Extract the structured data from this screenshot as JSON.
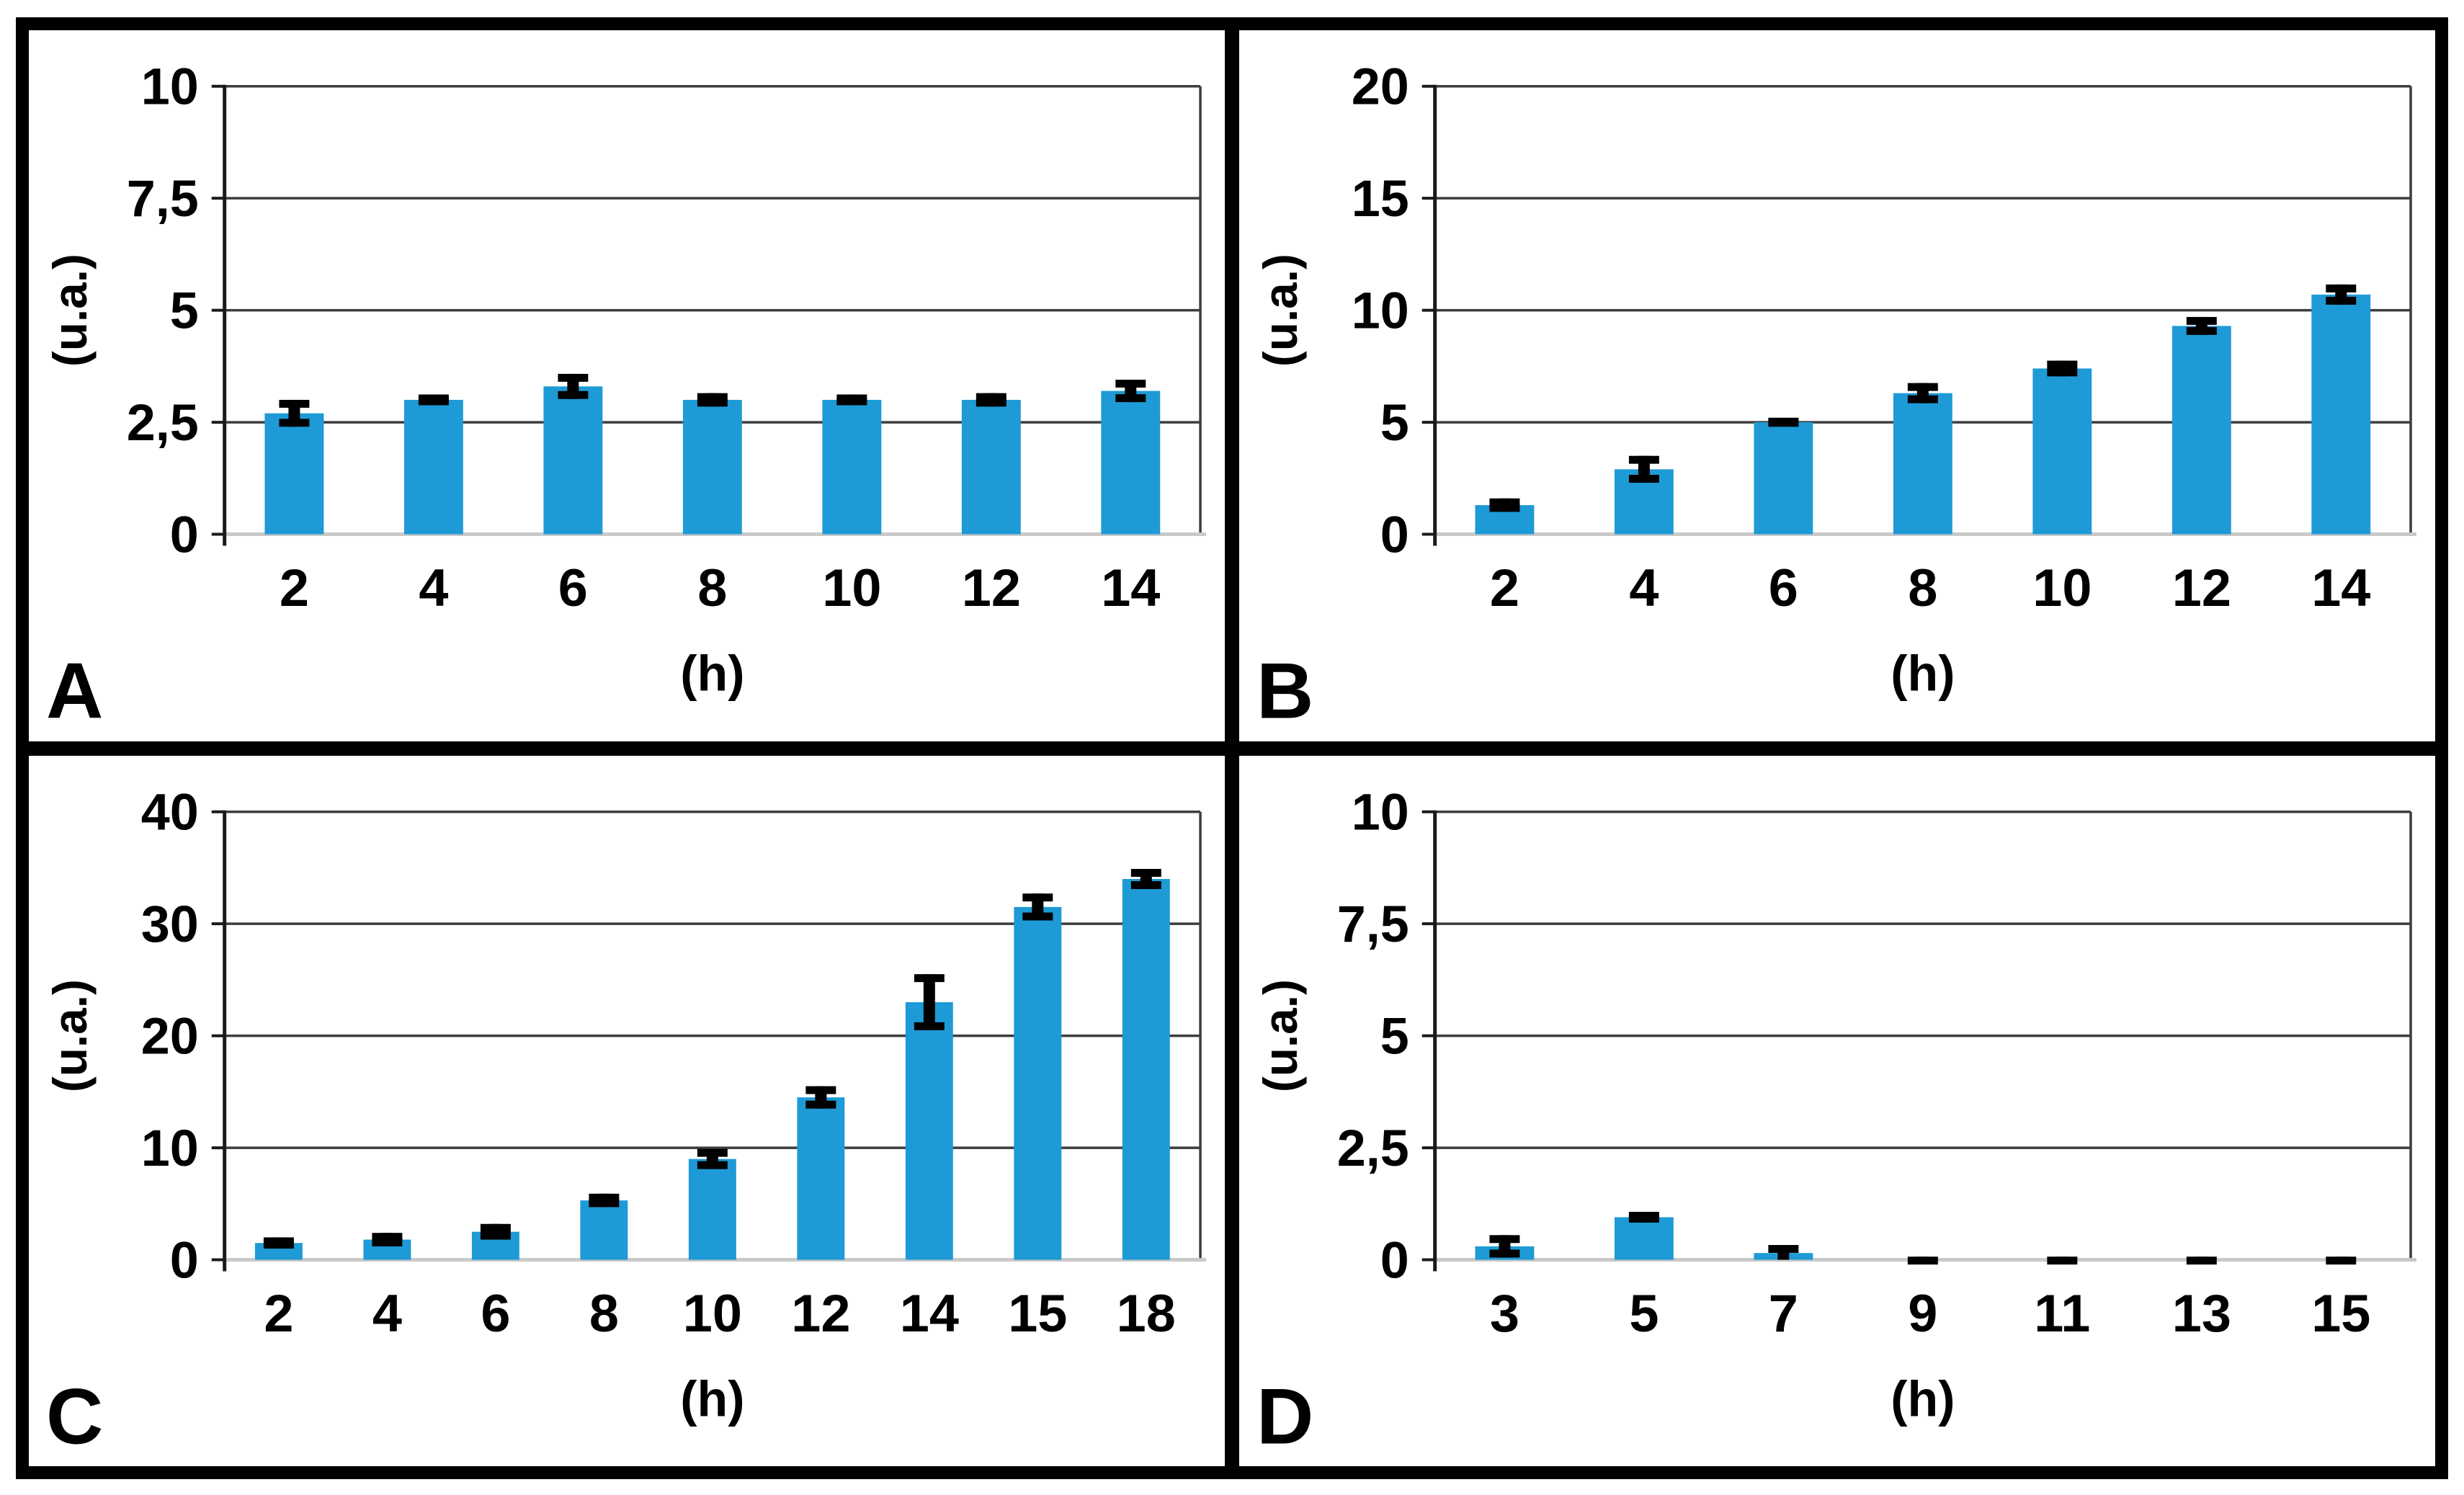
{
  "figure": {
    "background": "#ffffff",
    "frame_color": "#000000",
    "bar_color": "#1e9ad6",
    "gridline_color": "#3d3d3d",
    "axis_color": "#1a1a1a",
    "baseline_color": "#c9c9c9",
    "error_color": "#000000",
    "panel_letters": [
      "A",
      "B",
      "C",
      "D"
    ]
  },
  "chart_data": [
    {
      "type": "bar",
      "panel_label": "A",
      "title": "",
      "ylabel": "(u.a.)",
      "xlabel": "(h)",
      "ylim": [
        0,
        10
      ],
      "grid": true,
      "legend": null,
      "yticks": {
        "values": [
          0,
          2.5,
          5,
          7.5,
          10
        ],
        "labels": [
          "0",
          "2,5",
          "5",
          "7,5",
          "10"
        ]
      },
      "categories": [
        "2",
        "4",
        "6",
        "8",
        "10",
        "12",
        "14"
      ],
      "values": [
        2.7,
        3.0,
        3.3,
        3.0,
        3.0,
        3.0,
        3.2
      ],
      "errors": [
        0.3,
        0.12,
        0.28,
        0.15,
        0.12,
        0.15,
        0.25
      ]
    },
    {
      "type": "bar",
      "panel_label": "B",
      "title": "",
      "ylabel": "(u.a.)",
      "xlabel": "(h)",
      "ylim": [
        0,
        20
      ],
      "grid": true,
      "legend": null,
      "yticks": {
        "values": [
          0,
          5,
          10,
          15,
          20
        ],
        "labels": [
          "0",
          "5",
          "10",
          "15",
          "20"
        ]
      },
      "categories": [
        "2",
        "4",
        "6",
        "8",
        "10",
        "12",
        "14"
      ],
      "values": [
        1.3,
        2.9,
        5.0,
        6.3,
        7.4,
        9.3,
        10.7
      ],
      "errors": [
        0.3,
        0.6,
        0.15,
        0.45,
        0.35,
        0.4,
        0.45
      ]
    },
    {
      "type": "bar",
      "panel_label": "C",
      "title": "",
      "ylabel": "(u.a.)",
      "xlabel": "(h)",
      "ylim": [
        0,
        40
      ],
      "grid": true,
      "legend": null,
      "yticks": {
        "values": [
          0,
          10,
          20,
          30,
          40
        ],
        "labels": [
          "0",
          "10",
          "20",
          "30",
          "40"
        ]
      },
      "categories": [
        "2",
        "4",
        "6",
        "8",
        "10",
        "12",
        "14",
        "15",
        "18"
      ],
      "values": [
        1.5,
        1.8,
        2.5,
        5.3,
        9.0,
        14.5,
        23.0,
        31.5,
        34.0
      ],
      "errors": [
        0.5,
        0.6,
        0.7,
        0.6,
        0.9,
        1.0,
        2.5,
        1.2,
        0.9
      ]
    },
    {
      "type": "bar",
      "panel_label": "D",
      "title": "",
      "ylabel": "(u.a.)",
      "xlabel": "(h)",
      "ylim": [
        0,
        10
      ],
      "grid": true,
      "legend": null,
      "yticks": {
        "values": [
          0,
          2.5,
          5,
          7.5,
          10
        ],
        "labels": [
          "0",
          "2,5",
          "5",
          "7,5",
          "10"
        ]
      },
      "categories": [
        "3",
        "5",
        "7",
        "9",
        "11",
        "13",
        "15"
      ],
      "values": [
        0.3,
        0.95,
        0.15,
        0.0,
        0.0,
        0.0,
        0.0
      ],
      "errors": [
        0.25,
        0.12,
        0.18,
        0.07,
        0.07,
        0.07,
        0.07
      ]
    }
  ]
}
